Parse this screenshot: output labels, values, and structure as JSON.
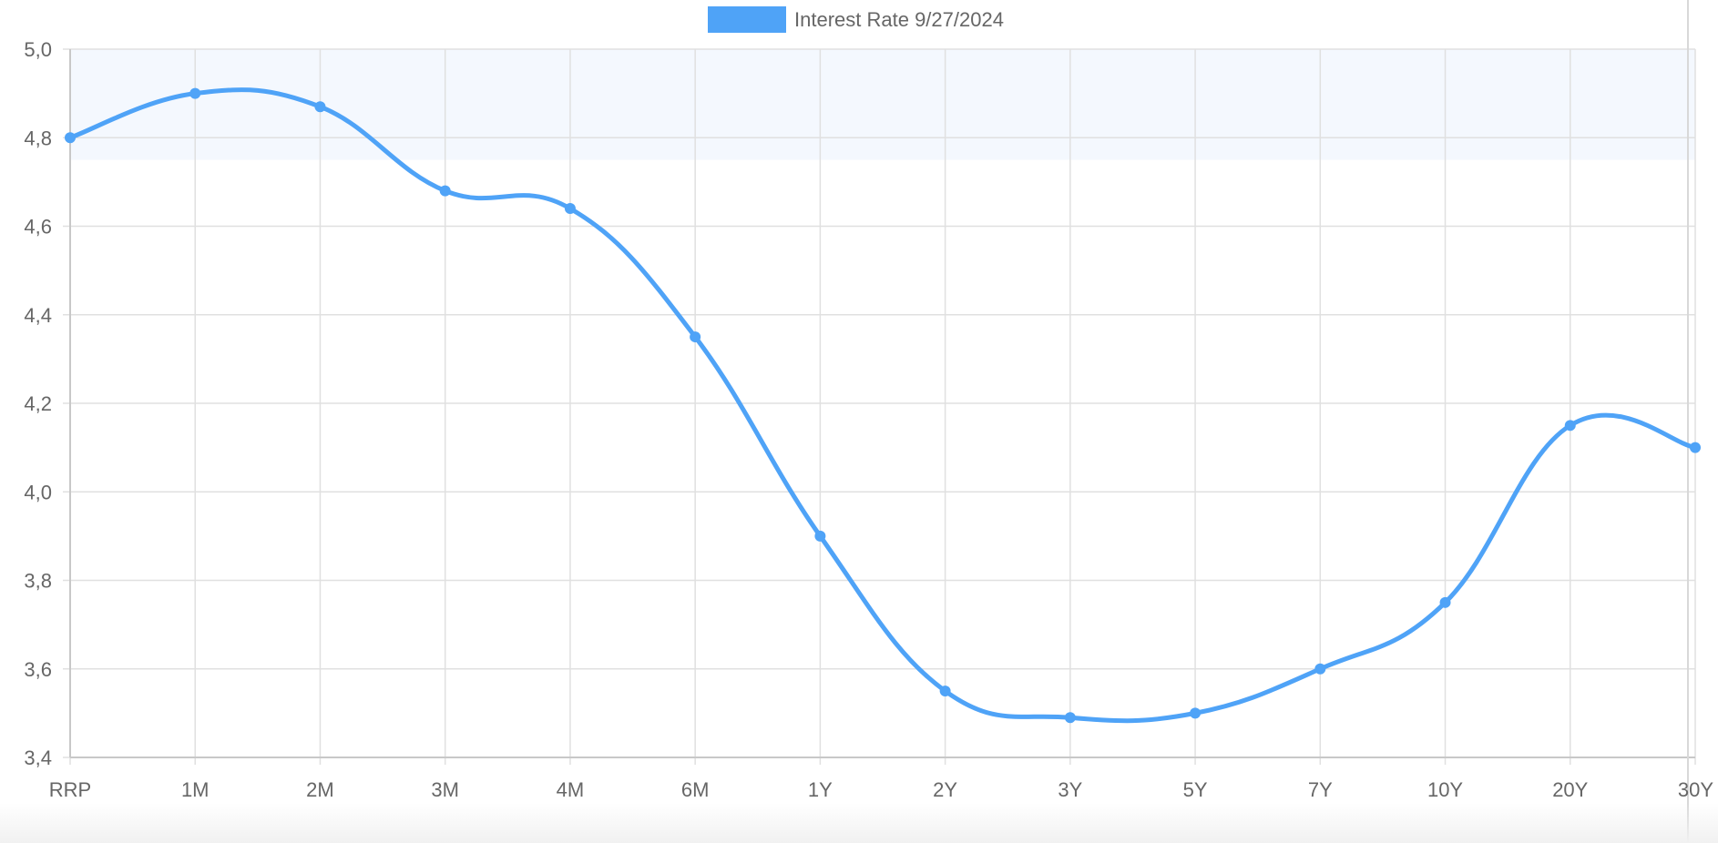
{
  "chart_data": {
    "type": "line",
    "title": "",
    "xlabel": "",
    "ylabel": "",
    "categories": [
      "RRP",
      "1M",
      "2M",
      "3M",
      "4M",
      "6M",
      "1Y",
      "2Y",
      "3Y",
      "5Y",
      "7Y",
      "10Y",
      "20Y",
      "30Y"
    ],
    "series": [
      {
        "name": "Interest Rate 9/27/2024",
        "values": [
          4.8,
          4.9,
          4.87,
          4.68,
          4.64,
          4.35,
          3.9,
          3.55,
          3.49,
          3.5,
          3.6,
          3.75,
          4.15,
          4.1
        ],
        "color": "#4fa3f7"
      }
    ],
    "ylim": [
      3.4,
      5.0
    ],
    "y_ticks": [
      "3,4",
      "3,6",
      "3,8",
      "4,0",
      "4,2",
      "4,4",
      "4,6",
      "4,8",
      "5,0"
    ],
    "highlight_band": [
      4.75,
      5.0
    ],
    "grid": true,
    "legend_position": "top-center",
    "smooth": true
  },
  "colors": {
    "line": "#4fa3f7",
    "band": "#f4f8fe",
    "grid": "#e0e0e0",
    "axis": "#c8c8c8",
    "text": "#666666"
  }
}
